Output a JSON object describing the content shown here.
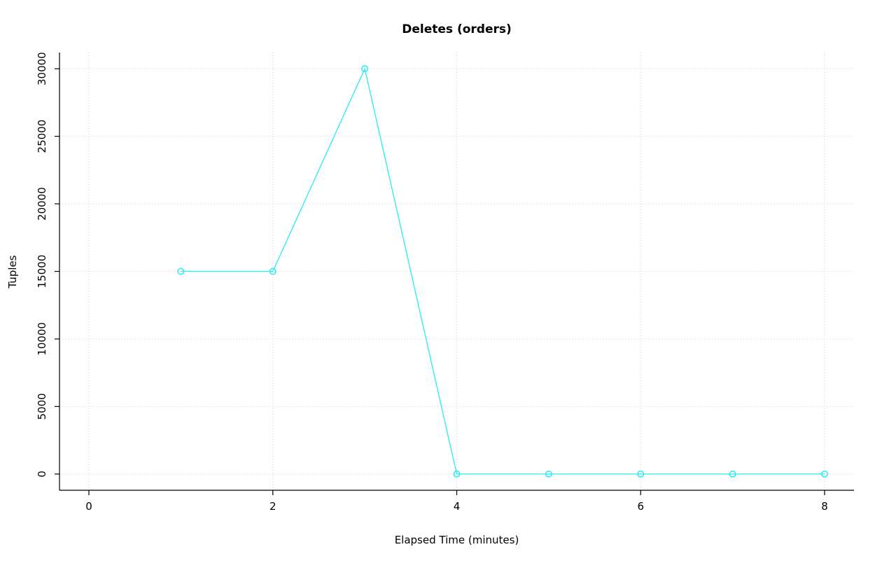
{
  "chart_data": {
    "type": "line",
    "title": "Deletes (orders)",
    "xlabel": "Elapsed Time (minutes)",
    "ylabel": "Tuples",
    "x": [
      1,
      2,
      3,
      4,
      5,
      6,
      7,
      8
    ],
    "y": [
      15000,
      15000,
      30000,
      0,
      0,
      0,
      0,
      0
    ],
    "xticks": [
      0,
      2,
      4,
      6,
      8
    ],
    "yticks": [
      0,
      5000,
      10000,
      15000,
      20000,
      25000,
      30000
    ],
    "xlim": [
      -0.32,
      8.32
    ],
    "ylim": [
      -1200,
      31200
    ],
    "series_color": "#27ecf2",
    "grid_color": "#d3d3d3",
    "axis_color": "#000000",
    "tick_label_color": "#000000",
    "grid": "on",
    "legend": "none",
    "marker": "open-circle"
  }
}
